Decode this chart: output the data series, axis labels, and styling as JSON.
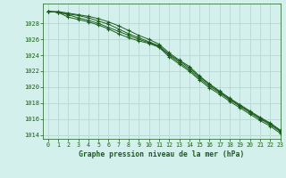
{
  "title": "Graphe pression niveau de la mer (hPa)",
  "background_color": "#d4f0ec",
  "grid_color": "#b8d8d4",
  "line_color": "#1a5c1a",
  "marker_color": "#1a5c1a",
  "xlim": [
    -0.5,
    23
  ],
  "ylim": [
    1013.5,
    1030.5
  ],
  "yticks": [
    1014,
    1016,
    1018,
    1020,
    1022,
    1024,
    1026,
    1028
  ],
  "xticks": [
    0,
    1,
    2,
    3,
    4,
    5,
    6,
    7,
    8,
    9,
    10,
    11,
    12,
    13,
    14,
    15,
    16,
    17,
    18,
    19,
    20,
    21,
    22,
    23
  ],
  "series": [
    [
      1029.5,
      1029.4,
      1028.8,
      1028.5,
      1028.2,
      1027.8,
      1027.3,
      1026.7,
      1026.2,
      1025.8,
      1025.5,
      1025.0,
      1023.8,
      1022.9,
      1022.0,
      1020.9,
      1019.9,
      1019.1,
      1018.2,
      1017.4,
      1016.6,
      1015.8,
      1015.1,
      1014.2
    ],
    [
      1029.5,
      1029.4,
      1029.1,
      1028.7,
      1028.4,
      1028.0,
      1027.5,
      1027.0,
      1026.5,
      1026.0,
      1025.6,
      1025.1,
      1024.0,
      1023.1,
      1022.2,
      1021.1,
      1020.1,
      1019.3,
      1018.4,
      1017.6,
      1016.8,
      1016.0,
      1015.3,
      1014.4
    ],
    [
      1029.5,
      1029.4,
      1029.2,
      1029.0,
      1028.7,
      1028.3,
      1027.9,
      1027.3,
      1026.7,
      1026.2,
      1025.7,
      1025.2,
      1024.1,
      1023.3,
      1022.4,
      1021.3,
      1020.3,
      1019.4,
      1018.5,
      1017.7,
      1016.9,
      1016.1,
      1015.4,
      1014.5
    ],
    [
      1029.5,
      1029.5,
      1029.3,
      1029.1,
      1028.9,
      1028.6,
      1028.2,
      1027.7,
      1027.1,
      1026.5,
      1026.0,
      1025.4,
      1024.3,
      1023.4,
      1022.6,
      1021.4,
      1020.4,
      1019.5,
      1018.6,
      1017.8,
      1017.0,
      1016.2,
      1015.5,
      1014.6
    ]
  ]
}
